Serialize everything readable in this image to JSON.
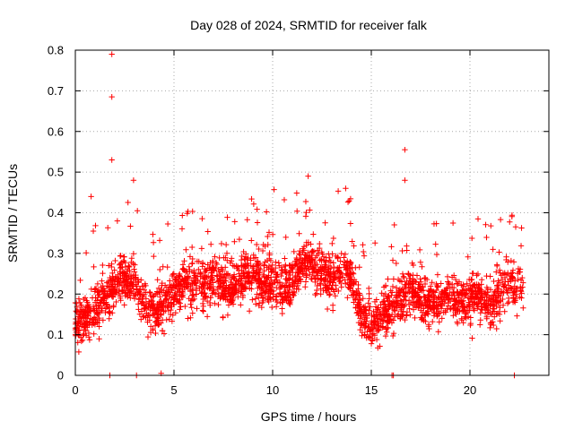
{
  "chart_data": {
    "type": "scatter",
    "title": "Day 028 of 2024, SRMTID for receiver falk",
    "xlabel": "GPS time / hours",
    "ylabel": "SRMTID / TECUs",
    "xlim": [
      0,
      24
    ],
    "ylim": [
      0,
      0.8
    ],
    "xticks": [
      0,
      5,
      10,
      15,
      20
    ],
    "yticks": [
      0,
      0.1,
      0.2,
      0.3,
      0.4,
      0.5,
      0.6,
      0.7,
      0.8
    ],
    "xtick_labels": [
      "0",
      "5",
      "10",
      "15",
      "20"
    ],
    "ytick_labels": [
      "0",
      "0.1",
      "0.2",
      "0.3",
      "0.4",
      "0.5",
      "0.6",
      "0.7",
      "0.8"
    ],
    "grid": true,
    "grid_style": "dotted",
    "marker": "+",
    "marker_color": "#ff0000",
    "x_data_range": [
      0,
      22.7
    ],
    "approx_point_count": 2700,
    "series": [
      {
        "name": "SRMTID",
        "profile": [
          {
            "x": 0.0,
            "y": 0.14
          },
          {
            "x": 0.5,
            "y": 0.13
          },
          {
            "x": 1.0,
            "y": 0.16
          },
          {
            "x": 1.5,
            "y": 0.2
          },
          {
            "x": 2.0,
            "y": 0.22
          },
          {
            "x": 2.5,
            "y": 0.24
          },
          {
            "x": 3.0,
            "y": 0.23
          },
          {
            "x": 3.5,
            "y": 0.18
          },
          {
            "x": 4.0,
            "y": 0.16
          },
          {
            "x": 4.5,
            "y": 0.18
          },
          {
            "x": 5.0,
            "y": 0.2
          },
          {
            "x": 5.5,
            "y": 0.23
          },
          {
            "x": 6.0,
            "y": 0.22
          },
          {
            "x": 6.5,
            "y": 0.22
          },
          {
            "x": 7.0,
            "y": 0.24
          },
          {
            "x": 7.5,
            "y": 0.22
          },
          {
            "x": 8.0,
            "y": 0.21
          },
          {
            "x": 8.5,
            "y": 0.24
          },
          {
            "x": 9.0,
            "y": 0.25
          },
          {
            "x": 9.5,
            "y": 0.22
          },
          {
            "x": 10.0,
            "y": 0.23
          },
          {
            "x": 10.5,
            "y": 0.21
          },
          {
            "x": 11.0,
            "y": 0.24
          },
          {
            "x": 11.5,
            "y": 0.27
          },
          {
            "x": 12.0,
            "y": 0.28
          },
          {
            "x": 12.5,
            "y": 0.25
          },
          {
            "x": 13.0,
            "y": 0.24
          },
          {
            "x": 13.5,
            "y": 0.26
          },
          {
            "x": 14.0,
            "y": 0.24
          },
          {
            "x": 14.5,
            "y": 0.14
          },
          {
            "x": 15.0,
            "y": 0.12
          },
          {
            "x": 15.5,
            "y": 0.14
          },
          {
            "x": 16.0,
            "y": 0.17
          },
          {
            "x": 16.5,
            "y": 0.18
          },
          {
            "x": 17.0,
            "y": 0.21
          },
          {
            "x": 17.5,
            "y": 0.18
          },
          {
            "x": 18.0,
            "y": 0.17
          },
          {
            "x": 18.5,
            "y": 0.18
          },
          {
            "x": 19.0,
            "y": 0.2
          },
          {
            "x": 19.5,
            "y": 0.18
          },
          {
            "x": 20.0,
            "y": 0.19
          },
          {
            "x": 20.5,
            "y": 0.2
          },
          {
            "x": 21.0,
            "y": 0.17
          },
          {
            "x": 21.5,
            "y": 0.21
          },
          {
            "x": 22.0,
            "y": 0.23
          },
          {
            "x": 22.7,
            "y": 0.21
          }
        ],
        "outliers": [
          {
            "x": 1.85,
            "y": 0.79
          },
          {
            "x": 1.85,
            "y": 0.685
          },
          {
            "x": 1.85,
            "y": 0.53
          },
          {
            "x": 16.7,
            "y": 0.555
          },
          {
            "x": 16.7,
            "y": 0.48
          },
          {
            "x": 11.8,
            "y": 0.49
          },
          {
            "x": 13.7,
            "y": 0.46
          },
          {
            "x": 2.95,
            "y": 0.48
          },
          {
            "x": 0.8,
            "y": 0.44
          },
          {
            "x": 1.75,
            "y": 0.0
          },
          {
            "x": 3.1,
            "y": 0.0
          },
          {
            "x": 16.05,
            "y": 0.0
          },
          {
            "x": 16.12,
            "y": 0.0
          },
          {
            "x": 22.25,
            "y": 0.0
          },
          {
            "x": 4.35,
            "y": 0.005
          }
        ]
      }
    ]
  }
}
